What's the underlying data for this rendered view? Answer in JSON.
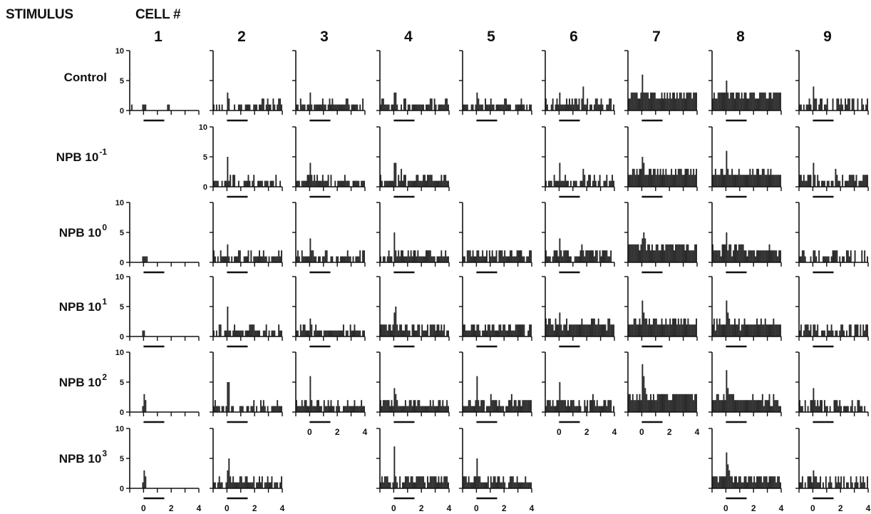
{
  "header": {
    "stimulus": "STIMULUS",
    "cell": "CELL #"
  },
  "columns": [
    "1",
    "2",
    "3",
    "4",
    "5",
    "6",
    "7",
    "8",
    "9"
  ],
  "rows": [
    {
      "base": "Control",
      "exp": ""
    },
    {
      "base": "NPB 10",
      "exp": "-1"
    },
    {
      "base": "NPB 10",
      "exp": "0"
    },
    {
      "base": "NPB 10",
      "exp": "1"
    },
    {
      "base": "NPB 10",
      "exp": "2"
    },
    {
      "base": "NPB 10",
      "exp": "3"
    }
  ],
  "chart_data": {
    "type": "bar",
    "subtype": "peristimulus histogram grid",
    "ylim": [
      0,
      10
    ],
    "yticks": [
      0,
      5,
      10
    ],
    "xlim": [
      -1,
      4
    ],
    "xticks": [
      0,
      2,
      4
    ],
    "stimulus_bar": [
      0,
      1.5
    ],
    "bin_width": 0.1,
    "panels": [
      {
        "row": 0,
        "col": 1,
        "peak": 1,
        "bins": [
          [
            -0.9,
            1
          ],
          [
            -0.1,
            1
          ],
          [
            0,
            1
          ],
          [
            0.1,
            1
          ],
          [
            1.7,
            1
          ],
          [
            1.8,
            1
          ]
        ]
      },
      {
        "row": 0,
        "col": 2,
        "peak": 3,
        "base": 1,
        "density": 0.65,
        "resp": [
          3,
          2
        ]
      },
      {
        "row": 0,
        "col": 3,
        "peak": 3,
        "base": 1,
        "density": 0.8,
        "resp": [
          3,
          1
        ],
        "extra": [
          [
            1.0,
            1
          ],
          [
            1.3,
            1
          ],
          [
            2.6,
            2
          ],
          [
            2.7,
            2
          ]
        ]
      },
      {
        "row": 0,
        "col": 4,
        "peak": 3,
        "base": 1,
        "density": 0.8,
        "resp": [
          3,
          3
        ],
        "extra": [
          [
            1.0,
            1
          ],
          [
            2.9,
            2
          ]
        ]
      },
      {
        "row": 0,
        "col": 5,
        "peak": 3,
        "base": 1,
        "density": 0.9,
        "resp": [
          3,
          2
        ],
        "extra": [
          [
            0.6,
            2
          ],
          [
            1.0,
            2
          ],
          [
            2.0,
            2
          ]
        ]
      },
      {
        "row": 0,
        "col": 6,
        "peak": 3,
        "base": 1.3,
        "density": 0.9,
        "resp": [
          3,
          1
        ],
        "extra": [
          [
            1.7,
            4
          ],
          [
            2.0,
            2
          ],
          [
            2.6,
            2
          ]
        ]
      },
      {
        "row": 0,
        "col": 7,
        "peak": 6,
        "base": 2.7,
        "density": 1.0,
        "resp": [
          6,
          3
        ]
      },
      {
        "row": 0,
        "col": 8,
        "peak": 5,
        "base": 2.7,
        "density": 1.0,
        "resp": [
          5,
          3
        ]
      },
      {
        "row": 0,
        "col": 9,
        "peak": 4,
        "base": 1.3,
        "density": 0.7,
        "resp": [
          4,
          2
        ],
        "extra": [
          [
            1.4,
            2
          ],
          [
            2.0,
            2
          ],
          [
            2.5,
            2
          ]
        ]
      },
      {
        "row": 1,
        "col": 2,
        "peak": 5,
        "base": 1,
        "density": 0.65,
        "resp": [
          5,
          1
        ]
      },
      {
        "row": 1,
        "col": 3,
        "peak": 4,
        "base": 1,
        "density": 0.85,
        "resp": [
          4,
          2
        ],
        "extra": [
          [
            1.0,
            1
          ],
          [
            1.3,
            2
          ]
        ]
      },
      {
        "row": 1,
        "col": 4,
        "peak": 4,
        "base": 1.2,
        "density": 0.9,
        "resp": [
          4,
          4
        ],
        "extra": [
          [
            0.5,
            3
          ],
          [
            0.8,
            2
          ]
        ]
      },
      {
        "row": 1,
        "col": 6,
        "peak": 4,
        "base": 1.3,
        "density": 0.8,
        "resp": [
          4,
          1
        ],
        "extra": [
          [
            1.7,
            3
          ],
          [
            2.2,
            2
          ]
        ]
      },
      {
        "row": 1,
        "col": 7,
        "peak": 5,
        "base": 2.3,
        "density": 1.0,
        "resp": [
          5,
          4
        ]
      },
      {
        "row": 1,
        "col": 8,
        "peak": 6,
        "base": 2.3,
        "density": 1.0,
        "resp": [
          6,
          3
        ]
      },
      {
        "row": 1,
        "col": 9,
        "peak": 4,
        "base": 1.3,
        "density": 0.7,
        "resp": [
          4,
          2
        ],
        "extra": [
          [
            1.6,
            3
          ],
          [
            2.1,
            2
          ]
        ]
      },
      {
        "row": 2,
        "col": 1,
        "peak": 1,
        "bins": [
          [
            -0.1,
            1
          ],
          [
            0,
            1
          ],
          [
            0.1,
            1
          ],
          [
            0.2,
            1
          ]
        ]
      },
      {
        "row": 2,
        "col": 2,
        "peak": 3,
        "base": 1,
        "density": 0.75,
        "resp": [
          3,
          1
        ]
      },
      {
        "row": 2,
        "col": 3,
        "peak": 4,
        "base": 1,
        "density": 0.8,
        "resp": [
          4,
          2
        ],
        "extra": [
          [
            1.1,
            2
          ]
        ]
      },
      {
        "row": 2,
        "col": 4,
        "peak": 5,
        "base": 1.2,
        "density": 0.9,
        "resp": [
          5,
          2
        ],
        "extra": [
          [
            0.3,
            2
          ],
          [
            0.6,
            2
          ]
        ]
      },
      {
        "row": 2,
        "col": 5,
        "peak": 2,
        "base": 1.4,
        "density": 0.9,
        "resp": [
          2,
          2
        ]
      },
      {
        "row": 2,
        "col": 6,
        "peak": 4,
        "base": 1.4,
        "density": 0.9,
        "resp": [
          4,
          2
        ],
        "extra": [
          [
            1.6,
            3
          ],
          [
            2.1,
            2
          ]
        ]
      },
      {
        "row": 2,
        "col": 7,
        "peak": 5,
        "base": 2.7,
        "density": 1.0,
        "resp": [
          4,
          5,
          4
        ]
      },
      {
        "row": 2,
        "col": 8,
        "peak": 5,
        "base": 2.0,
        "density": 1.0,
        "resp": [
          5,
          2
        ],
        "extra": [
          [
            0.3,
            3
          ]
        ]
      },
      {
        "row": 2,
        "col": 9,
        "peak": 2,
        "base": 1.3,
        "density": 0.7,
        "resp": [
          2,
          2
        ]
      },
      {
        "row": 3,
        "col": 1,
        "peak": 1,
        "bins": [
          [
            -0.1,
            1
          ],
          [
            0,
            1
          ]
        ]
      },
      {
        "row": 3,
        "col": 2,
        "peak": 5,
        "base": 1,
        "density": 0.75,
        "resp": [
          5,
          1
        ]
      },
      {
        "row": 3,
        "col": 3,
        "peak": 3,
        "base": 1,
        "density": 0.85,
        "resp": [
          3,
          2
        ],
        "extra": [
          [
            0.4,
            2
          ]
        ]
      },
      {
        "row": 3,
        "col": 4,
        "peak": 5,
        "base": 1.5,
        "density": 0.9,
        "resp": [
          4,
          5,
          2
        ]
      },
      {
        "row": 3,
        "col": 5,
        "peak": 2,
        "base": 1.5,
        "density": 0.95,
        "resp": [
          2,
          2
        ]
      },
      {
        "row": 3,
        "col": 6,
        "peak": 4,
        "base": 2.0,
        "density": 1.0,
        "resp": [
          4,
          2
        ]
      },
      {
        "row": 3,
        "col": 7,
        "peak": 6,
        "base": 2.3,
        "density": 1.0,
        "resp": [
          6,
          4,
          3
        ]
      },
      {
        "row": 3,
        "col": 8,
        "peak": 6,
        "base": 2.0,
        "density": 1.0,
        "resp": [
          6,
          4,
          3
        ]
      },
      {
        "row": 3,
        "col": 9,
        "peak": 2,
        "base": 1.4,
        "density": 0.7,
        "resp": [
          2,
          2
        ]
      },
      {
        "row": 4,
        "col": 1,
        "peak": 3,
        "bins": [
          [
            -0.1,
            1
          ],
          [
            0,
            3
          ],
          [
            0.1,
            2
          ]
        ]
      },
      {
        "row": 4,
        "col": 2,
        "peak": 5,
        "base": 1,
        "density": 0.75,
        "resp": [
          5,
          5
        ]
      },
      {
        "row": 4,
        "col": 3,
        "peak": 6,
        "base": 1,
        "density": 0.95,
        "resp": [
          6,
          2
        ],
        "extra": [
          [
            1.3,
            2
          ]
        ]
      },
      {
        "row": 4,
        "col": 4,
        "peak": 4,
        "base": 1.5,
        "density": 0.95,
        "resp": [
          4,
          3,
          2
        ]
      },
      {
        "row": 4,
        "col": 5,
        "peak": 6,
        "base": 1.5,
        "density": 0.95,
        "resp": [
          6,
          2
        ],
        "extra": [
          [
            1.0,
            3
          ],
          [
            2.5,
            3
          ]
        ]
      },
      {
        "row": 4,
        "col": 6,
        "peak": 5,
        "base": 1.5,
        "density": 0.9,
        "resp": [
          5,
          2
        ],
        "extra": [
          [
            2.4,
            3
          ]
        ]
      },
      {
        "row": 4,
        "col": 7,
        "peak": 8,
        "base": 2.7,
        "density": 1.0,
        "resp": [
          8,
          6,
          4
        ]
      },
      {
        "row": 4,
        "col": 8,
        "peak": 7,
        "base": 2.0,
        "density": 1.0,
        "resp": [
          7,
          4,
          3,
          3,
          3,
          3
        ]
      },
      {
        "row": 4,
        "col": 9,
        "peak": 4,
        "base": 1.3,
        "density": 0.7,
        "resp": [
          4,
          2
        ],
        "extra": [
          [
            1.9,
            2
          ]
        ]
      },
      {
        "row": 5,
        "col": 1,
        "peak": 3,
        "bins": [
          [
            -0.1,
            1
          ],
          [
            0,
            3
          ],
          [
            0.1,
            2
          ]
        ]
      },
      {
        "row": 5,
        "col": 2,
        "peak": 5,
        "base": 1,
        "density": 0.9,
        "resp": [
          3,
          5,
          2
        ]
      },
      {
        "row": 5,
        "col": 4,
        "peak": 7,
        "base": 1.5,
        "density": 0.95,
        "resp": [
          7,
          2
        ]
      },
      {
        "row": 5,
        "col": 5,
        "peak": 5,
        "base": 1.5,
        "density": 0.95,
        "resp": [
          5,
          2
        ],
        "extra": [
          [
            0.8,
            2
          ]
        ]
      },
      {
        "row": 5,
        "col": 8,
        "peak": 6,
        "base": 1.7,
        "density": 1.0,
        "resp": [
          6,
          4,
          3
        ]
      },
      {
        "row": 5,
        "col": 9,
        "peak": 3,
        "base": 1.2,
        "density": 0.7,
        "resp": [
          3,
          2
        ],
        "extra": [
          [
            1.8,
            2
          ],
          [
            2.2,
            2
          ]
        ]
      }
    ],
    "bottom_ticklabels": [
      {
        "row": 5,
        "col": 1
      },
      {
        "row": 5,
        "col": 2
      },
      {
        "row": 4,
        "col": 3
      },
      {
        "row": 5,
        "col": 4
      },
      {
        "row": 5,
        "col": 5
      },
      {
        "row": 4,
        "col": 6
      },
      {
        "row": 4,
        "col": 7
      },
      {
        "row": 5,
        "col": 8
      },
      {
        "row": 5,
        "col": 9
      }
    ],
    "left_ticklabels": [
      {
        "row": 0,
        "col": 1
      },
      {
        "row": 1,
        "col": 2
      },
      {
        "row": 2,
        "col": 1
      },
      {
        "row": 3,
        "col": 1
      },
      {
        "row": 4,
        "col": 1
      },
      {
        "row": 5,
        "col": 1
      }
    ]
  }
}
